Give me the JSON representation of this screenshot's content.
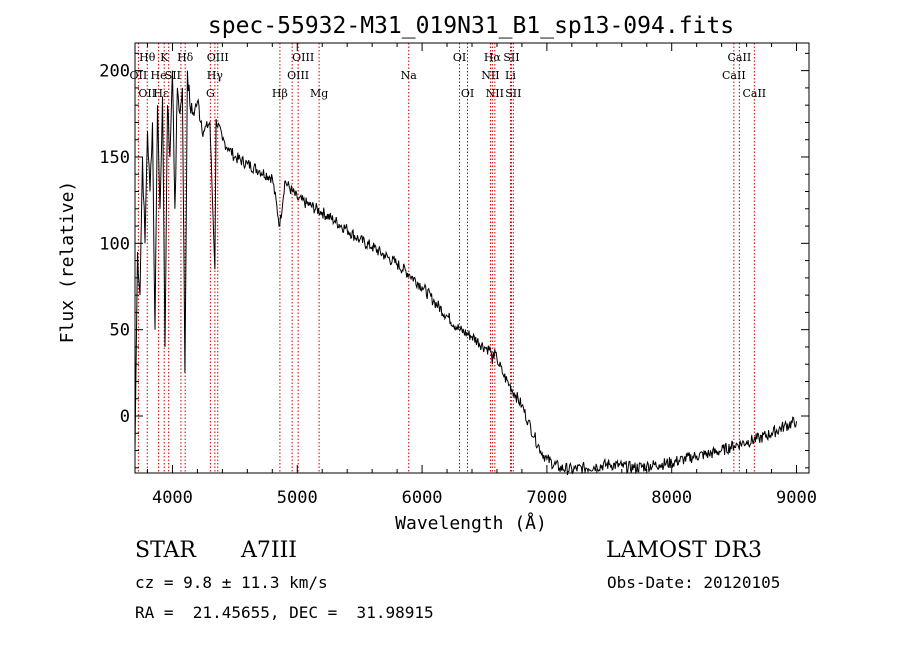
{
  "chart_data": {
    "type": "line",
    "title": "spec-55932-M31_019N31_B1_sp13-094.fits",
    "xlabel": "Wavelength (Å)",
    "ylabel": "Flux (relative)",
    "xlim": [
      3700,
      9100
    ],
    "ylim": [
      -33,
      216
    ],
    "x_ticks": [
      4000,
      5000,
      6000,
      7000,
      8000,
      9000
    ],
    "y_ticks": [
      0,
      50,
      100,
      150,
      200
    ],
    "series": [
      {
        "name": "flux",
        "x": [
          3700,
          3720,
          3740,
          3760,
          3780,
          3800,
          3820,
          3840,
          3860,
          3880,
          3900,
          3920,
          3940,
          3960,
          3980,
          4000,
          4020,
          4040,
          4060,
          4080,
          4100,
          4120,
          4140,
          4160,
          4180,
          4200,
          4250,
          4300,
          4340,
          4350,
          4400,
          4450,
          4500,
          4600,
          4700,
          4800,
          4860,
          4900,
          5000,
          5100,
          5200,
          5300,
          5400,
          5500,
          5600,
          5700,
          5800,
          5900,
          6000,
          6100,
          6200,
          6300,
          6400,
          6500,
          6550,
          6563,
          6570,
          6600,
          6650,
          6700,
          6750,
          6800,
          6850,
          6900,
          6950,
          7000,
          7100,
          7200,
          7300,
          7400,
          7500,
          7600,
          7700,
          7800,
          7900,
          8000,
          8100,
          8200,
          8300,
          8400,
          8500,
          8600,
          8700,
          8800,
          8900,
          9000
        ],
        "values": [
          -20,
          95,
          70,
          150,
          100,
          165,
          130,
          170,
          50,
          180,
          120,
          185,
          40,
          180,
          150,
          200,
          120,
          190,
          175,
          190,
          25,
          200,
          180,
          175,
          178,
          182,
          165,
          170,
          85,
          172,
          160,
          155,
          150,
          146,
          142,
          138,
          110,
          136,
          126,
          122,
          118,
          113,
          108,
          102,
          98,
          93,
          88,
          82,
          75,
          66,
          58,
          50,
          46,
          40,
          38,
          30,
          37,
          33,
          24,
          18,
          12,
          6,
          -3,
          -12,
          -20,
          -25,
          -30,
          -31,
          -30,
          -29,
          -28,
          -29,
          -30,
          -29,
          -28,
          -27,
          -25,
          -23,
          -22,
          -20,
          -17,
          -15,
          -13,
          -10,
          -6,
          -3
        ]
      }
    ],
    "spectral_lines": [
      {
        "label": "Hθ",
        "wl": 3798,
        "row": 0,
        "anchor": "middle"
      },
      {
        "label": "K",
        "wl": 3934,
        "row": 0,
        "anchor": "middle"
      },
      {
        "label": "Hδ",
        "wl": 4102,
        "row": 0,
        "anchor": "middle"
      },
      {
        "label": "OIII",
        "wl": 4363,
        "row": 0,
        "anchor": "middle"
      },
      {
        "label": "OIII",
        "wl": 4959,
        "row": 0,
        "anchor": "start"
      },
      {
        "label": "OI",
        "wl": 6300,
        "row": 0,
        "anchor": "middle"
      },
      {
        "label": "Hα",
        "wl": 6563,
        "row": 0,
        "anchor": "middle"
      },
      {
        "label": "SII",
        "wl": 6716,
        "row": 0,
        "anchor": "middle"
      },
      {
        "label": "CaII",
        "wl": 8542,
        "row": 0,
        "anchor": "middle"
      },
      {
        "label": "OII",
        "wl": 3727,
        "row": 1,
        "anchor": "middle"
      },
      {
        "label": "He",
        "wl": 3889,
        "row": 1,
        "anchor": "middle"
      },
      {
        "label": "SII",
        "wl": 4068,
        "row": 1,
        "anchor": "end"
      },
      {
        "label": "Hγ",
        "wl": 4340,
        "row": 1,
        "anchor": "middle"
      },
      {
        "label": "OIII",
        "wl": 5007,
        "row": 1,
        "anchor": "middle"
      },
      {
        "label": "Na",
        "wl": 5893,
        "row": 1,
        "anchor": "middle"
      },
      {
        "label": "NII",
        "wl": 6548,
        "row": 1,
        "anchor": "middle"
      },
      {
        "label": "Li",
        "wl": 6708,
        "row": 1,
        "anchor": "middle"
      },
      {
        "label": "CaII",
        "wl": 8498,
        "row": 1,
        "anchor": "middle"
      },
      {
        "label": "OII",
        "wl": 3727,
        "row": 2,
        "anchor": "start"
      },
      {
        "label": "Hε",
        "wl": 3970,
        "row": 2,
        "anchor": "end"
      },
      {
        "label": "G",
        "wl": 4304,
        "row": 2,
        "anchor": "middle"
      },
      {
        "label": "Hβ",
        "wl": 4861,
        "row": 2,
        "anchor": "middle"
      },
      {
        "label": "Mg",
        "wl": 5175,
        "row": 2,
        "anchor": "middle"
      },
      {
        "label": "OI",
        "wl": 6364,
        "row": 2,
        "anchor": "middle"
      },
      {
        "label": "NII",
        "wl": 6583,
        "row": 2,
        "anchor": "middle"
      },
      {
        "label": "SII",
        "wl": 6731,
        "row": 2,
        "anchor": "middle"
      },
      {
        "label": "CaII",
        "wl": 8662,
        "row": 2,
        "anchor": "middle"
      }
    ]
  },
  "info": {
    "class_label": "STAR",
    "subclass": "A7III",
    "survey": "LAMOST DR3",
    "cz": "cz = 9.8 ± 11.3 km/s",
    "obs_date": "Obs-Date: 20120105",
    "coords": "RA =  21.45655, DEC =  31.98915"
  },
  "colors": {
    "line": "#000000",
    "marker": "#cc0000",
    "background": "#ffffff"
  }
}
